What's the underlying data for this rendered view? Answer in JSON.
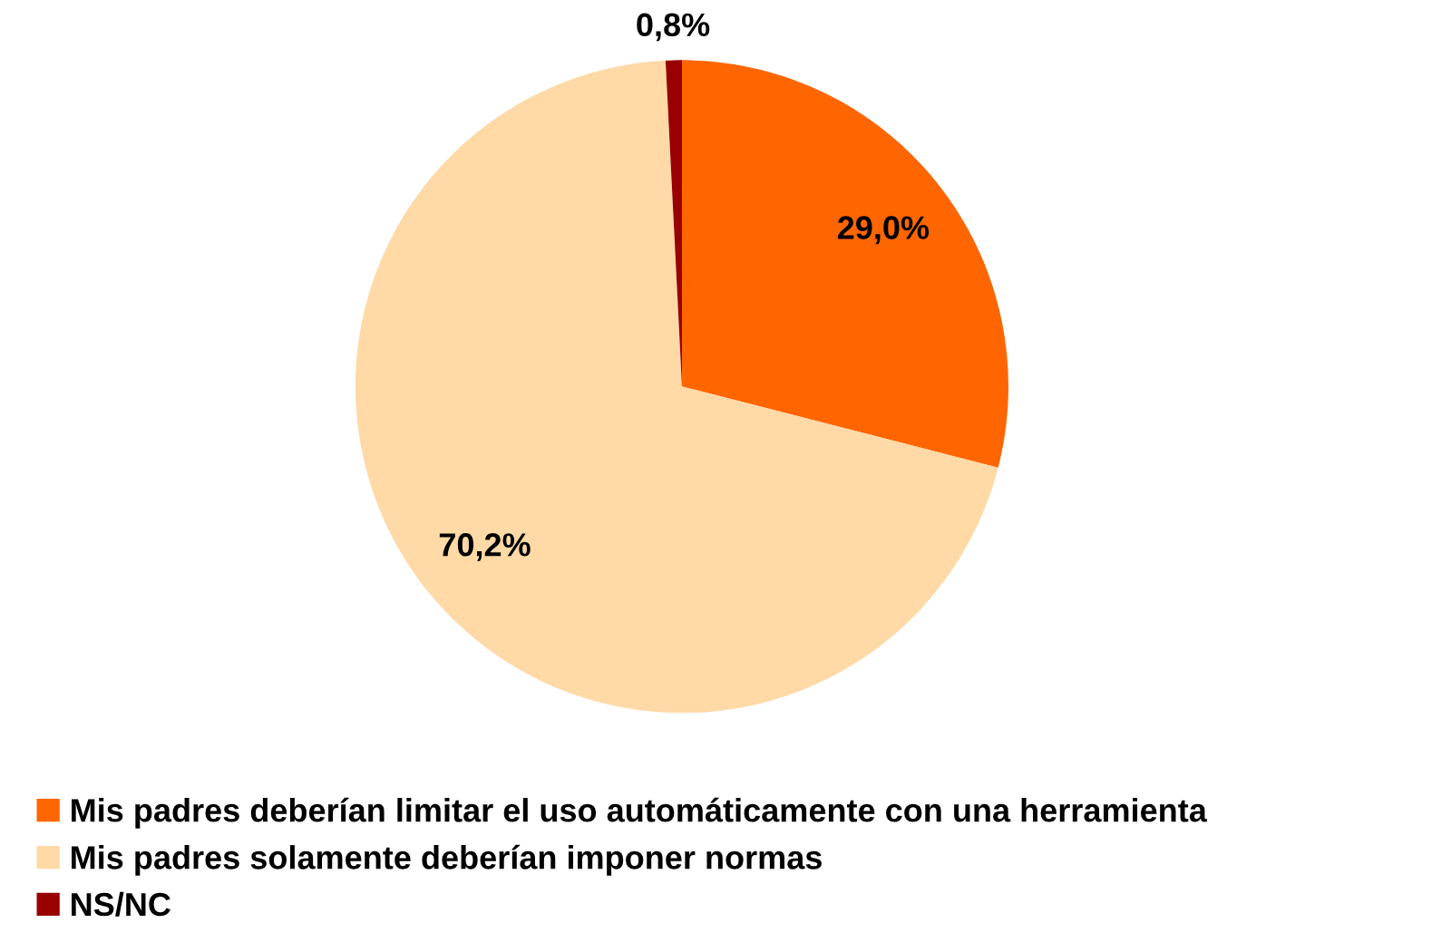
{
  "chart_data": {
    "type": "pie",
    "categories": [
      "Mis padres deberían limitar el uso automáticamente con una herramienta",
      "Mis padres solamente deberían imponer normas",
      "NS/NC"
    ],
    "values": [
      29.0,
      70.2,
      0.8
    ],
    "colors": [
      "#ff6600",
      "#ffd9a6",
      "#990000"
    ],
    "value_labels": [
      "29,0%",
      "70,2%",
      "0,8%"
    ],
    "legend": "bottom left"
  }
}
